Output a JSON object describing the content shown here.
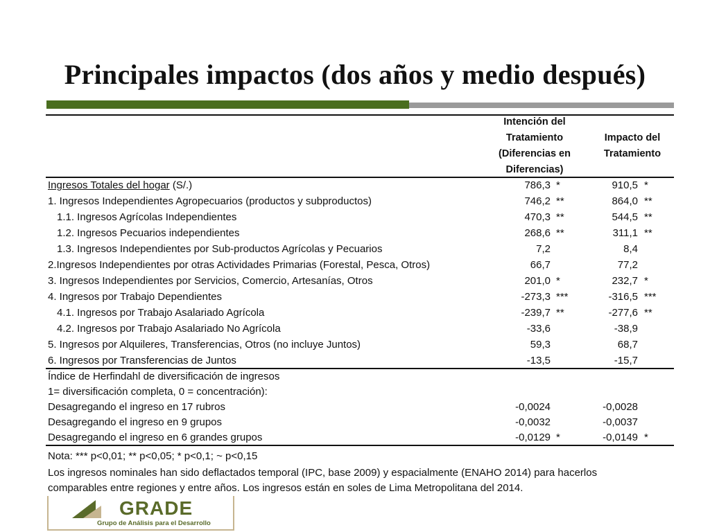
{
  "slide": {
    "title": "Principales impactos (dos años y medio después)"
  },
  "table": {
    "header": {
      "col1": [
        "Intención del",
        "Tratamiento",
        "(Diferencias en",
        "Diferencias)"
      ],
      "col2": [
        "Impacto del",
        "Tratamiento"
      ]
    },
    "rows": [
      {
        "label_u": "Ingresos Totales del hogar",
        "label_rest": " (S/.)",
        "indent": false,
        "v1": "786,3",
        "s1": "*",
        "v2": "910,5",
        "s2": "*"
      },
      {
        "label": "1. Ingresos Independientes Agropecuarios (productos y subproductos)",
        "indent": false,
        "v1": "746,2",
        "s1": "**",
        "v2": "864,0",
        "s2": "**"
      },
      {
        "label": "1.1. Ingresos Agrícolas Independientes",
        "indent": true,
        "v1": "470,3",
        "s1": "**",
        "v2": "544,5",
        "s2": "**"
      },
      {
        "label": "1.2. Ingresos Pecuarios independientes",
        "indent": true,
        "v1": "268,6",
        "s1": "**",
        "v2": "311,1",
        "s2": "**"
      },
      {
        "label": "1.3. Ingresos Independientes por Sub-productos Agrícolas y Pecuarios",
        "indent": true,
        "v1": "7,2",
        "s1": "",
        "v2": "8,4",
        "s2": ""
      },
      {
        "label": "2.Ingresos Independientes por otras Actividades Primarias (Forestal, Pesca, Otros)",
        "indent": false,
        "v1": "66,7",
        "s1": "",
        "v2": "77,2",
        "s2": ""
      },
      {
        "label": "3. Ingresos Independientes por Servicios, Comercio, Artesanías, Otros",
        "indent": false,
        "v1": "201,0",
        "s1": "*",
        "v2": "232,7",
        "s2": "*"
      },
      {
        "label": "4. Ingresos por Trabajo Dependientes",
        "indent": false,
        "v1": "-273,3",
        "s1": "***",
        "v2": "-316,5",
        "s2": "***"
      },
      {
        "label": "4.1. Ingresos por Trabajo Asalariado Agrícola",
        "indent": true,
        "v1": "-239,7",
        "s1": "**",
        "v2": "-277,6",
        "s2": "**"
      },
      {
        "label": "4.2. Ingresos por Trabajo Asalariado No Agrícola",
        "indent": true,
        "v1": "-33,6",
        "s1": "",
        "v2": "-38,9",
        "s2": ""
      },
      {
        "label": "5. Ingresos por Alquileres, Transferencias, Otros (no incluye Juntos)",
        "indent": false,
        "v1": "59,3",
        "s1": "",
        "v2": "68,7",
        "s2": ""
      },
      {
        "label": "6. Ingresos por Transferencias de Juntos",
        "indent": false,
        "v1": "-13,5",
        "s1": "",
        "v2": "-15,7",
        "s2": ""
      }
    ],
    "herf_header": [
      "Índice de Herfindahl de diversificación de ingresos",
      "1= diversificación completa, 0 = concentración):"
    ],
    "herf_rows": [
      {
        "label": "Desagregando el ingreso en 17 rubros",
        "v1": "-0,0024",
        "s1": "",
        "v2": "-0,0028",
        "s2": ""
      },
      {
        "label": "Desagregando el ingreso en 9 grupos",
        "v1": "-0,0032",
        "s1": "",
        "v2": "-0,0037",
        "s2": ""
      },
      {
        "label": "Desagregando el ingreso en 6 grandes grupos",
        "v1": "-0,0129",
        "s1": "*",
        "v2": "-0,0149",
        "s2": "*"
      }
    ],
    "note": "Nota: *** p<0,01; ** p<0,05; * p<0,1; ~ p<0,15",
    "footnote": [
      "Los ingresos nominales han sido deflactados temporal (IPC, base 2009) y espacialmente (ENAHO 2014) para hacerlos",
      "comparables entre regiones y entre años.  Los ingresos están en soles de Lima Metropolitana del 2014."
    ]
  },
  "logo": {
    "word": "GRADE",
    "tagline": "Grupo de Análisis para el Desarrollo"
  },
  "colors": {
    "accent_green": "#4a6e1f",
    "accent_gray": "#9a9a9a",
    "logo_olive": "#5a6b2a",
    "logo_border": "#c6b590"
  }
}
